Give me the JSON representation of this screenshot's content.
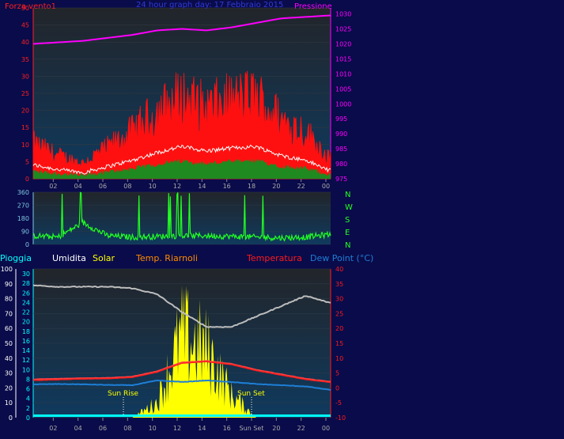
{
  "colors": {
    "background": "#0a0b4a",
    "plot_bg_top": "#1e2228",
    "plot_bg_bottom": "#0e3556",
    "wind": "#ff1010",
    "wind_avg": "#ffffff",
    "wind_low": "#1f8a1f",
    "pressure": "#ff00ff",
    "direction": "#22ff22",
    "rain": "#00ffff",
    "humidity": "#bdbdbd",
    "solar": "#ffff00",
    "temp_riarnoli": "#ff4040",
    "temperature": "#ff1a1a",
    "dew_point": "#1e7fd6"
  },
  "top_chart": {
    "title": "24 hour graph day:  17 Febbraio 2015",
    "left_label": "Forza vento1",
    "right_label": "Pressione",
    "left_ticks": [
      "0",
      "5",
      "10",
      "15",
      "20",
      "25",
      "30",
      "35",
      "40",
      "45",
      "50"
    ],
    "right_ticks": [
      "975",
      "980",
      "985",
      "990",
      "995",
      "1000",
      "1005",
      "1010",
      "1015",
      "1020",
      "1025",
      "1030"
    ],
    "x_ticks": [
      "02",
      "04",
      "06",
      "08",
      "10",
      "12",
      "14",
      "16",
      "18",
      "20",
      "22",
      "00"
    ]
  },
  "dir_chart": {
    "left_ticks": [
      "0",
      "90",
      "180",
      "270",
      "360"
    ],
    "compass": [
      "N",
      "W",
      "S",
      "E",
      "N"
    ]
  },
  "bottom_chart": {
    "legend": {
      "rain": "Pioggia",
      "humidity": "Umidita",
      "solar": "Solar",
      "riarnoli": "Temp. Riarnoli",
      "temperature": "Temperatura",
      "dew": "Dew Point (°C)"
    },
    "ticks_humidity": [
      "0",
      "10",
      "20",
      "30",
      "40",
      "50",
      "60",
      "70",
      "80",
      "90",
      "100"
    ],
    "ticks_rain": [
      "0",
      "2",
      "4",
      "6",
      "8",
      "10",
      "12",
      "14",
      "16",
      "18",
      "20",
      "22",
      "24",
      "26",
      "28",
      "30"
    ],
    "ticks_temp": [
      "-10",
      "-5",
      "0",
      "5",
      "10",
      "15",
      "20",
      "25",
      "30",
      "35",
      "40"
    ],
    "x_ticks": [
      "02",
      "04",
      "06",
      "08",
      "10",
      "12",
      "14",
      "16",
      "Sun Set",
      "20",
      "22",
      "00"
    ],
    "sun_rise": "Sun Rise",
    "sun_set": "Sun Set"
  },
  "chart_data": [
    {
      "type": "line",
      "title": "24 hour graph day:  17 Febbraio 2015",
      "x": [
        "00",
        "02",
        "04",
        "06",
        "08",
        "10",
        "12",
        "14",
        "16",
        "18",
        "20",
        "22",
        "00"
      ],
      "series": [
        {
          "name": "Forza vento1",
          "values": [
            9,
            6,
            4,
            8,
            12,
            17,
            21,
            18,
            20,
            21,
            15,
            12,
            5
          ]
        },
        {
          "name": "Pressione",
          "values": [
            1020,
            1020.5,
            1021,
            1022,
            1023,
            1024.5,
            1025,
            1024.5,
            1025.5,
            1027,
            1028.5,
            1029,
            1029.5
          ]
        }
      ],
      "ylim": [
        0,
        50
      ],
      "y2lim": [
        975,
        1032
      ]
    },
    {
      "type": "line",
      "x": [
        "00",
        "02",
        "04",
        "06",
        "08",
        "10",
        "12",
        "14",
        "16",
        "18",
        "20",
        "22",
        "00"
      ],
      "series": [
        {
          "name": "Direzione",
          "values": [
            60,
            50,
            150,
            60,
            50,
            55,
            60,
            60,
            55,
            50,
            45,
            50,
            70
          ]
        }
      ],
      "ylim": [
        0,
        360
      ]
    },
    {
      "type": "line",
      "x": [
        "00",
        "02",
        "04",
        "06",
        "08",
        "10",
        "12",
        "14",
        "16",
        "18",
        "20",
        "22",
        "00"
      ],
      "series": [
        {
          "name": "Umidita",
          "values": [
            89,
            88,
            88,
            88,
            87,
            83,
            71,
            61,
            61,
            68,
            75,
            82,
            77
          ]
        },
        {
          "name": "Solar",
          "values": [
            0,
            0,
            0,
            0,
            0,
            10,
            55,
            45,
            15,
            0,
            0,
            0,
            0
          ]
        },
        {
          "name": "Temp. Riarnoli",
          "values": [
            2.8,
            3.0,
            3.2,
            3.3,
            3.7,
            5.5,
            8.5,
            9.0,
            8.0,
            6.0,
            4.5,
            3.0,
            2.0
          ]
        },
        {
          "name": "Temperatura",
          "values": [
            2.5,
            2.7,
            3.0,
            3.1,
            3.5,
            5.3,
            8.3,
            8.8,
            7.8,
            5.8,
            4.3,
            2.8,
            1.8
          ]
        },
        {
          "name": "Dew Point (°C)",
          "values": [
            1.2,
            1.3,
            1.2,
            1.0,
            0.9,
            2.5,
            2.0,
            2.5,
            2.0,
            1.3,
            0.9,
            0.5,
            -0.7
          ]
        },
        {
          "name": "Pioggia",
          "values": [
            0,
            0,
            0,
            0,
            0,
            0,
            0,
            0,
            0,
            0,
            0,
            0,
            0
          ]
        }
      ],
      "ylim": [
        0,
        100
      ],
      "y2lim": [
        -10,
        40
      ]
    }
  ]
}
